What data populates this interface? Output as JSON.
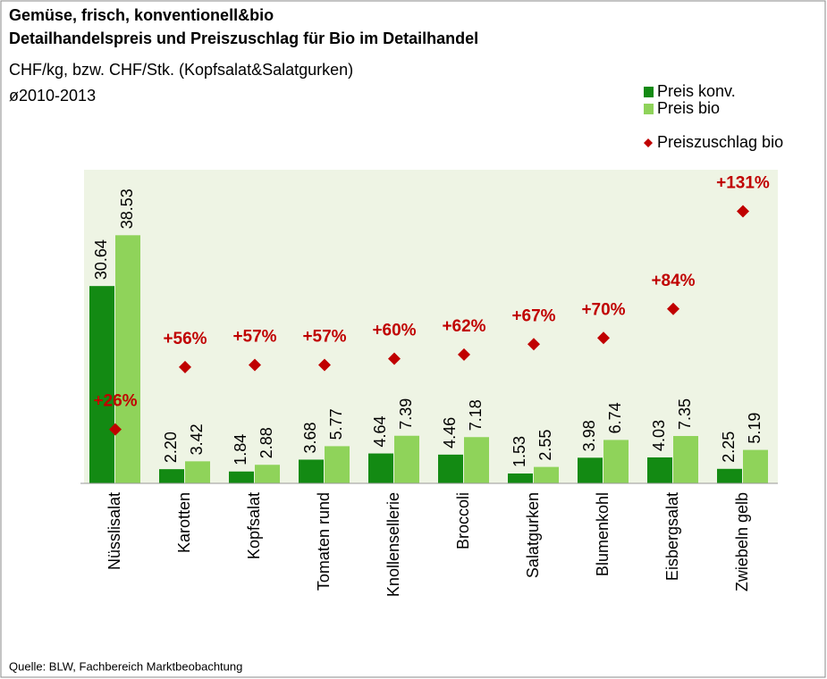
{
  "chart_data": {
    "type": "bar",
    "title_lines": [
      "Gemüse, frisch, konventionell&bio",
      "Detailhandelspreis und Preiszuschlag für Bio im Detailhandel"
    ],
    "subtitle_lines": [
      "CHF/kg, bzw. CHF/Stk. (Kopfsalat&Salatgurken)",
      "ø2010-2013"
    ],
    "source": "Quelle: BLW, Fachbereich Marktbeobachtung",
    "categories": [
      "Nüsslisalat",
      "Karotten",
      "Kopfsalat",
      "Tomaten rund",
      "Knollensellerie",
      "Broccoli",
      "Salatgurken",
      "Blumenkohl",
      "Eisbergsalat",
      "Zwiebeln gelb"
    ],
    "series": [
      {
        "name": "Preis konv.",
        "color": "#138a13",
        "values": [
          30.64,
          2.2,
          1.84,
          3.68,
          4.64,
          4.46,
          1.53,
          3.98,
          4.03,
          2.25
        ],
        "value_labels": [
          "30.64",
          "2.20",
          "1.84",
          "3.68",
          "4.64",
          "4.46",
          "1.53",
          "3.98",
          "4.03",
          "2.25"
        ]
      },
      {
        "name": "Preis bio",
        "color": "#8fd35a",
        "values": [
          38.53,
          3.42,
          2.88,
          5.77,
          7.39,
          7.18,
          2.55,
          6.74,
          7.35,
          5.19
        ],
        "value_labels": [
          "38.53",
          "3.42",
          "2.88",
          "5.77",
          "7.39",
          "7.18",
          "2.55",
          "6.74",
          "7.35",
          "5.19"
        ]
      },
      {
        "name": "Preiszuschlag bio",
        "type": "scatter",
        "axis": "y2",
        "color": "#c00000",
        "values": [
          26,
          56,
          57,
          57,
          60,
          62,
          67,
          70,
          84,
          131
        ],
        "value_labels": [
          "+26%",
          "+56%",
          "+57%",
          "+57%",
          "+60%",
          "+62%",
          "+67%",
          "+70%",
          "+84%",
          "+131%"
        ]
      }
    ],
    "ylim": [
      0,
      48.7
    ],
    "y2lim": [
      0,
      151
    ],
    "legend": "top-right",
    "plot_background": "#eef4e4"
  }
}
